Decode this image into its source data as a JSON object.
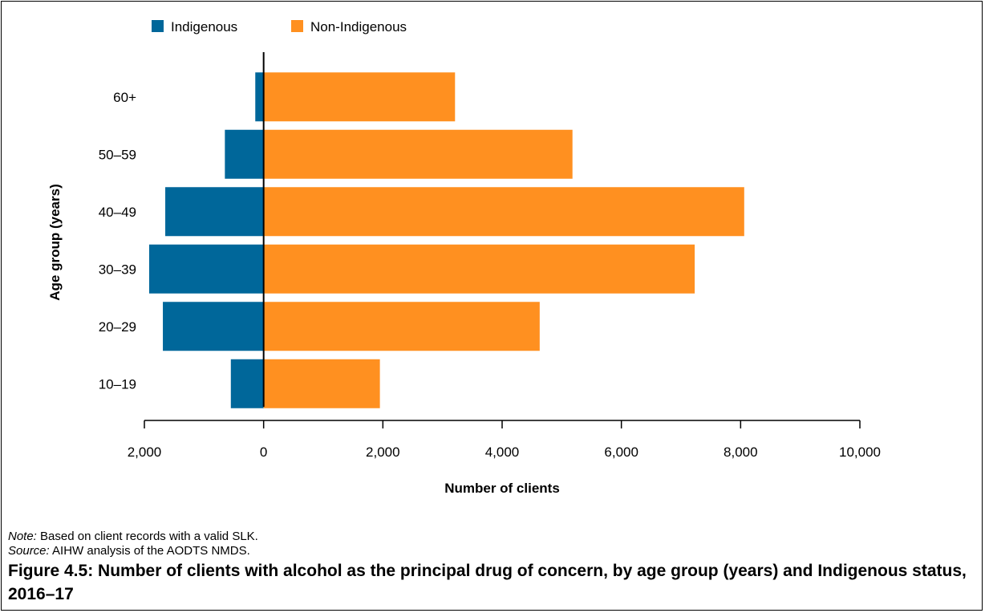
{
  "chart_data": {
    "type": "bar",
    "orientation": "horizontal",
    "layout": "diverging",
    "categories": [
      "10–19",
      "20–29",
      "30–39",
      "40–49",
      "50–59",
      "60+"
    ],
    "series": [
      {
        "name": "Indigenous",
        "color": "#00679a",
        "values": [
          550,
          1690,
          1920,
          1650,
          650,
          140
        ]
      },
      {
        "name": "Non-Indigenous",
        "color": "#ff9020",
        "values": [
          1950,
          4630,
          7230,
          8060,
          5180,
          3210
        ]
      }
    ],
    "xlabel": "Number of clients",
    "ylabel": "Age group (years)",
    "xlim": [
      -2000,
      10000
    ],
    "xticks": [
      -2000,
      0,
      2000,
      4000,
      6000,
      8000,
      10000
    ],
    "xtick_labels": [
      "2,000",
      "0",
      "2,000",
      "4,000",
      "6,000",
      "8,000",
      "10,000"
    ],
    "legend_position": "top-left",
    "grid": false
  },
  "note": {
    "label": "Note:",
    "text": " Based on client records with a valid SLK."
  },
  "source": {
    "label": "Source:",
    "text": " AIHW analysis of the AODTS NMDS."
  },
  "caption": "Figure 4.5: Number of clients with alcohol as the principal drug of concern, by age group (years) and Indigenous status, 2016–17"
}
